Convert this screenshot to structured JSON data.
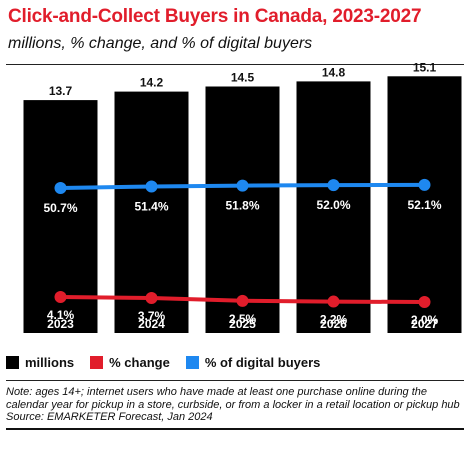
{
  "title": "Click-and-Collect Buyers in Canada, 2023-2027",
  "subtitle": "millions, % change, and % of digital buyers",
  "chart_data": {
    "type": "bar",
    "categories": [
      "2023",
      "2024",
      "2025",
      "2026",
      "2027"
    ],
    "series": [
      {
        "name": "millions",
        "type": "bar",
        "color": "#000000",
        "values": [
          13.7,
          14.2,
          14.5,
          14.8,
          15.1
        ],
        "labels": [
          "13.7",
          "14.2",
          "14.5",
          "14.8",
          "15.1"
        ]
      },
      {
        "name": "% change",
        "type": "line",
        "color": "#e11d2b",
        "values": [
          4.1,
          3.7,
          2.5,
          2.2,
          2.0
        ],
        "labels": [
          "4.1%",
          "3.7%",
          "2.5%",
          "2.2%",
          "2.0%"
        ]
      },
      {
        "name": "% of digital buyers",
        "type": "line",
        "color": "#1e88f0",
        "values": [
          50.7,
          51.4,
          51.8,
          52.0,
          52.1
        ],
        "labels": [
          "50.7%",
          "51.4%",
          "51.8%",
          "52.0%",
          "52.1%"
        ]
      }
    ],
    "legend_position": "bottom-left"
  },
  "note": "Note: ages 14+; internet users who have made at least one purchase online during the calendar year for pickup in a store, curbside, or from a locker in a retail location or pickup hub",
  "source": "Source: EMARKETER Forecast, Jan 2024"
}
